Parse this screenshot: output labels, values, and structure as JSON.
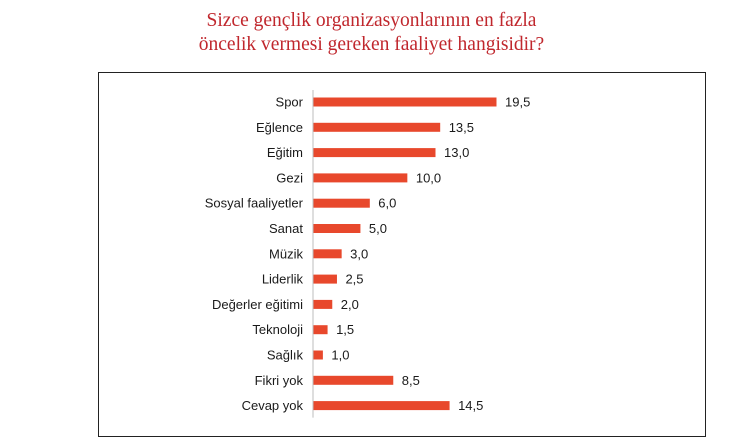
{
  "chart_data": {
    "type": "bar",
    "orientation": "horizontal",
    "title_lines": [
      "Sizce gençlik organizasyonlarının en fazla",
      "öncelik vermesi gereken faaliyet hangisidir?"
    ],
    "categories": [
      "Spor",
      "Eğlence",
      "Eğitim",
      "Gezi",
      "Sosyal faaliyetler",
      "Sanat",
      "Müzik",
      "Liderlik",
      "Değerler eğitimi",
      "Teknoloji",
      "Sağlık",
      "Fikri yok",
      "Cevap yok"
    ],
    "values": [
      19.5,
      13.5,
      13.0,
      10.0,
      6.0,
      5.0,
      3.0,
      2.5,
      2.0,
      1.5,
      1.0,
      8.5,
      14.5
    ],
    "value_labels": [
      "19,5",
      "13,5",
      "13,0",
      "10,0",
      "6,0",
      "5,0",
      "3,0",
      "2,5",
      "2,0",
      "1,5",
      "1,0",
      "8,5",
      "14,5"
    ],
    "xlim": [
      0,
      19.5
    ],
    "grid": false,
    "legend": "none",
    "bar_color": "#e8482c"
  }
}
